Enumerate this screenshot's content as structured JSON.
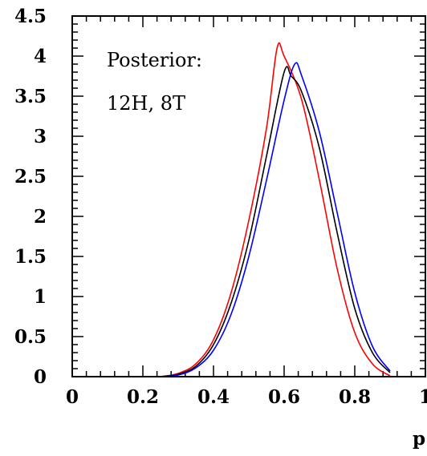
{
  "chart_data": {
    "type": "line",
    "title": "",
    "xlabel": "p",
    "ylabel": "",
    "xlim": [
      0,
      1
    ],
    "ylim": [
      0,
      4.5
    ],
    "x_ticks": [
      {
        "value": 0,
        "label": "0"
      },
      {
        "value": 0.2,
        "label": "0.2"
      },
      {
        "value": 0.4,
        "label": "0.4"
      },
      {
        "value": 0.6,
        "label": "0.6"
      },
      {
        "value": 0.8,
        "label": "0.8"
      },
      {
        "value": 1,
        "label": "1"
      }
    ],
    "y_ticks": [
      {
        "value": 0,
        "label": "0"
      },
      {
        "value": 0.5,
        "label": "0.5"
      },
      {
        "value": 1,
        "label": "1"
      },
      {
        "value": 1.5,
        "label": "1.5"
      },
      {
        "value": 2,
        "label": "2"
      },
      {
        "value": 2.5,
        "label": "2.5"
      },
      {
        "value": 3,
        "label": "3"
      },
      {
        "value": 3.5,
        "label": "3.5"
      },
      {
        "value": 4,
        "label": "4"
      },
      {
        "value": 4.5,
        "label": "4.5"
      }
    ],
    "annotation": [
      "Posterior:",
      "12H, 8T"
    ],
    "grid": false,
    "series": [
      {
        "color": "#ff0000",
        "points": [
          [
            0.25,
            0.0
          ],
          [
            0.3,
            0.04
          ],
          [
            0.35,
            0.16
          ],
          [
            0.4,
            0.46
          ],
          [
            0.45,
            1.05
          ],
          [
            0.5,
            1.95
          ],
          [
            0.55,
            3.1
          ],
          [
            0.58,
            4.1
          ],
          [
            0.6,
            4.0
          ],
          [
            0.65,
            3.45
          ],
          [
            0.7,
            2.45
          ],
          [
            0.75,
            1.35
          ],
          [
            0.8,
            0.55
          ],
          [
            0.85,
            0.16
          ],
          [
            0.9,
            0.01
          ]
        ]
      },
      {
        "color": "#000000",
        "points": [
          [
            0.25,
            0.0
          ],
          [
            0.3,
            0.03
          ],
          [
            0.35,
            0.13
          ],
          [
            0.4,
            0.4
          ],
          [
            0.45,
            0.92
          ],
          [
            0.5,
            1.7
          ],
          [
            0.55,
            2.75
          ],
          [
            0.6,
            3.8
          ],
          [
            0.62,
            3.75
          ],
          [
            0.65,
            3.55
          ],
          [
            0.7,
            2.85
          ],
          [
            0.75,
            1.8
          ],
          [
            0.8,
            0.85
          ],
          [
            0.85,
            0.3
          ],
          [
            0.9,
            0.05
          ]
        ]
      },
      {
        "color": "#0000ff",
        "points": [
          [
            0.25,
            0.0
          ],
          [
            0.3,
            0.02
          ],
          [
            0.35,
            0.11
          ],
          [
            0.4,
            0.33
          ],
          [
            0.45,
            0.78
          ],
          [
            0.5,
            1.5
          ],
          [
            0.55,
            2.45
          ],
          [
            0.6,
            3.45
          ],
          [
            0.63,
            3.9
          ],
          [
            0.65,
            3.75
          ],
          [
            0.7,
            3.05
          ],
          [
            0.75,
            2.05
          ],
          [
            0.8,
            1.05
          ],
          [
            0.85,
            0.38
          ],
          [
            0.9,
            0.07
          ]
        ]
      }
    ]
  }
}
